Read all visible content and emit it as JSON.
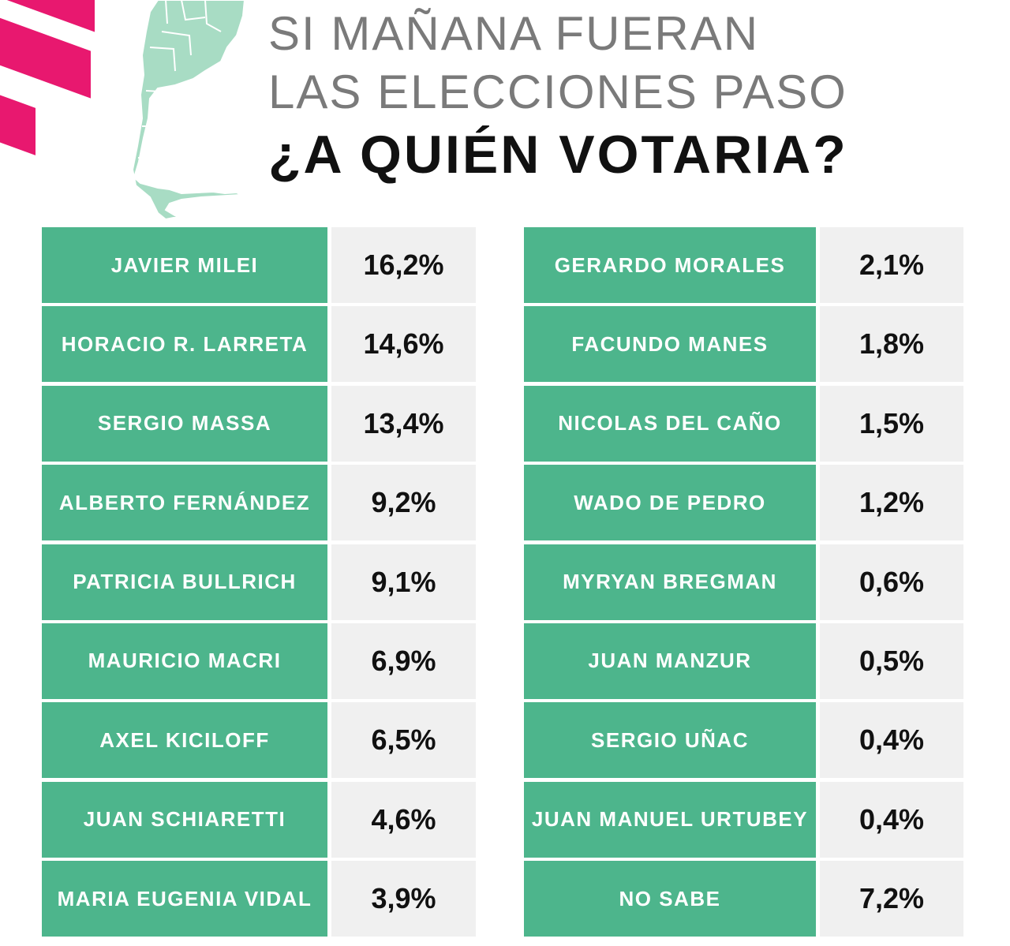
{
  "header": {
    "title_line_1": "SI MAÑANA FUERAN",
    "title_line_2": "LAS ELECCIONES PASO",
    "title_line_3": "¿A QUIÉN VOTARIA?"
  },
  "colors": {
    "accent_green": "#4db58c",
    "brand_pink": "#e8186f",
    "value_background": "#f0f0f0",
    "map_fill": "#a8dcc4"
  },
  "icons": {
    "map": "argentina-map-icon",
    "stripes": "brand-stripes-icon"
  },
  "chart_data": {
    "type": "table",
    "title": "¿A QUIÉN VOTARIA?",
    "columns": [
      [
        {
          "name": "JAVIER MILEI",
          "value": 16.2,
          "label": "16,2%"
        },
        {
          "name": "HORACIO R. LARRETA",
          "value": 14.6,
          "label": "14,6%"
        },
        {
          "name": "SERGIO MASSA",
          "value": 13.4,
          "label": "13,4%"
        },
        {
          "name": "ALBERTO FERNÁNDEZ",
          "value": 9.2,
          "label": "9,2%"
        },
        {
          "name": "PATRICIA BULLRICH",
          "value": 9.1,
          "label": "9,1%"
        },
        {
          "name": "MAURICIO MACRI",
          "value": 6.9,
          "label": "6,9%"
        },
        {
          "name": "AXEL KICILOFF",
          "value": 6.5,
          "label": "6,5%"
        },
        {
          "name": "JUAN SCHIARETTI",
          "value": 4.6,
          "label": "4,6%"
        },
        {
          "name": "MARIA EUGENIA VIDAL",
          "value": 3.9,
          "label": "3,9%"
        }
      ],
      [
        {
          "name": "GERARDO MORALES",
          "value": 2.1,
          "label": "2,1%"
        },
        {
          "name": "FACUNDO MANES",
          "value": 1.8,
          "label": "1,8%"
        },
        {
          "name": "NICOLAS DEL CAÑO",
          "value": 1.5,
          "label": "1,5%"
        },
        {
          "name": "WADO DE PEDRO",
          "value": 1.2,
          "label": "1,2%"
        },
        {
          "name": "MYRYAN BREGMAN",
          "value": 0.6,
          "label": "0,6%"
        },
        {
          "name": "JUAN MANZUR",
          "value": 0.5,
          "label": "0,5%"
        },
        {
          "name": "SERGIO UÑAC",
          "value": 0.4,
          "label": "0,4%"
        },
        {
          "name": "JUAN MANUEL URTUBEY",
          "value": 0.4,
          "label": "0,4%"
        },
        {
          "name": "NO SABE",
          "value": 7.2,
          "label": "7,2%"
        }
      ]
    ]
  }
}
